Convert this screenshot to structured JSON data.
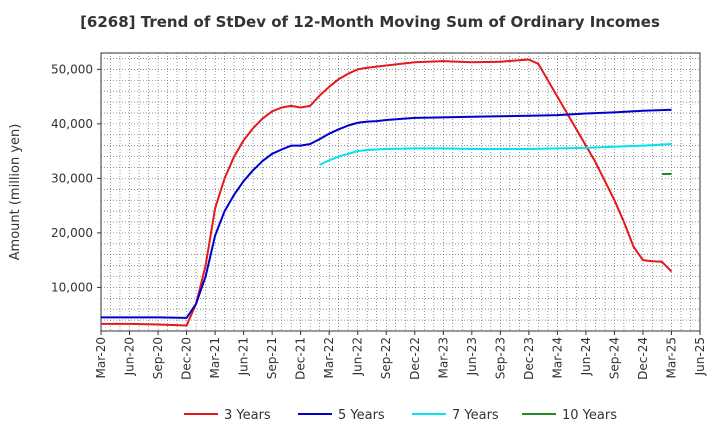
{
  "title": "[6268]  Trend of StDev of 12-Month Moving Sum of Ordinary Incomes",
  "chart_data": {
    "type": "line",
    "title": "[6268]  Trend of StDev of 12-Month Moving Sum of Ordinary Incomes",
    "xlabel": "",
    "ylabel": "Amount (million yen)",
    "xlim": [
      "2020-03",
      "2025-06"
    ],
    "ylim": [
      2000,
      53000
    ],
    "x_ticks": [
      "Mar-20",
      "Jun-20",
      "Sep-20",
      "Dec-20",
      "Mar-21",
      "Jun-21",
      "Sep-21",
      "Dec-21",
      "Mar-22",
      "Jun-22",
      "Sep-22",
      "Dec-22",
      "Mar-23",
      "Jun-23",
      "Sep-23",
      "Dec-23",
      "Mar-24",
      "Jun-24",
      "Sep-24",
      "Dec-24",
      "Mar-25",
      "Jun-25"
    ],
    "y_ticks": [
      10000,
      20000,
      30000,
      40000,
      50000
    ],
    "y_tick_labels": [
      "10,000",
      "20,000",
      "30,000",
      "40,000",
      "50,000"
    ],
    "grid": true,
    "legend_position": "bottom",
    "series": [
      {
        "name": "3 Years",
        "color": "#e31a1c",
        "x": [
          "2020-03",
          "2020-06",
          "2020-09",
          "2020-12",
          "2021-01",
          "2021-02",
          "2021-03",
          "2021-04",
          "2021-05",
          "2021-06",
          "2021-07",
          "2021-08",
          "2021-09",
          "2021-10",
          "2021-11",
          "2021-12",
          "2022-01",
          "2022-02",
          "2022-03",
          "2022-04",
          "2022-05",
          "2022-06",
          "2022-07",
          "2022-08",
          "2022-09",
          "2022-12",
          "2023-03",
          "2023-06",
          "2023-09",
          "2023-12",
          "2024-01",
          "2024-02",
          "2024-03",
          "2024-04",
          "2024-05",
          "2024-06",
          "2024-07",
          "2024-08",
          "2024-09",
          "2024-10",
          "2024-11",
          "2024-12",
          "2025-01",
          "2025-02",
          "2025-03"
        ],
        "values": [
          3300,
          3300,
          3200,
          3000,
          7000,
          14000,
          24500,
          30000,
          34000,
          37000,
          39200,
          41000,
          42300,
          43000,
          43300,
          43000,
          43300,
          45200,
          46800,
          48200,
          49200,
          50000,
          50300,
          50500,
          50700,
          51300,
          51500,
          51300,
          51400,
          51800,
          51000,
          48000,
          45000,
          42000,
          39000,
          36000,
          33000,
          29500,
          26000,
          22000,
          17500,
          15000,
          14800,
          14700,
          12900
        ]
      },
      {
        "name": "5 Years",
        "color": "#0000cc",
        "x": [
          "2020-03",
          "2020-06",
          "2020-09",
          "2020-12",
          "2021-01",
          "2021-02",
          "2021-03",
          "2021-04",
          "2021-05",
          "2021-06",
          "2021-07",
          "2021-08",
          "2021-09",
          "2021-10",
          "2021-11",
          "2021-12",
          "2022-01",
          "2022-02",
          "2022-03",
          "2022-04",
          "2022-05",
          "2022-06",
          "2022-07",
          "2022-08",
          "2022-09",
          "2022-12",
          "2023-03",
          "2023-06",
          "2023-09",
          "2023-12",
          "2024-03",
          "2024-06",
          "2024-09",
          "2024-12",
          "2025-03"
        ],
        "values": [
          4500,
          4500,
          4500,
          4400,
          7000,
          12000,
          19500,
          24000,
          27000,
          29500,
          31500,
          33200,
          34500,
          35300,
          36000,
          36000,
          36300,
          37200,
          38200,
          39000,
          39700,
          40200,
          40400,
          40500,
          40700,
          41100,
          41200,
          41300,
          41400,
          41500,
          41600,
          41900,
          42100,
          42400,
          42600
        ]
      },
      {
        "name": "7 Years",
        "color": "#00e5ee",
        "x": [
          "2022-02",
          "2022-03",
          "2022-04",
          "2022-05",
          "2022-06",
          "2022-07",
          "2022-08",
          "2022-09",
          "2022-12",
          "2023-03",
          "2023-06",
          "2023-09",
          "2023-12",
          "2024-03",
          "2024-06",
          "2024-09",
          "2024-12",
          "2025-03"
        ],
        "values": [
          32500,
          33300,
          34000,
          34500,
          35000,
          35200,
          35300,
          35400,
          35500,
          35500,
          35400,
          35400,
          35400,
          35500,
          35600,
          35800,
          36000,
          36300
        ]
      },
      {
        "name": "10 Years",
        "color": "#228b22",
        "x": [
          "2025-02",
          "2025-03"
        ],
        "values": [
          30800,
          30800
        ]
      }
    ]
  }
}
